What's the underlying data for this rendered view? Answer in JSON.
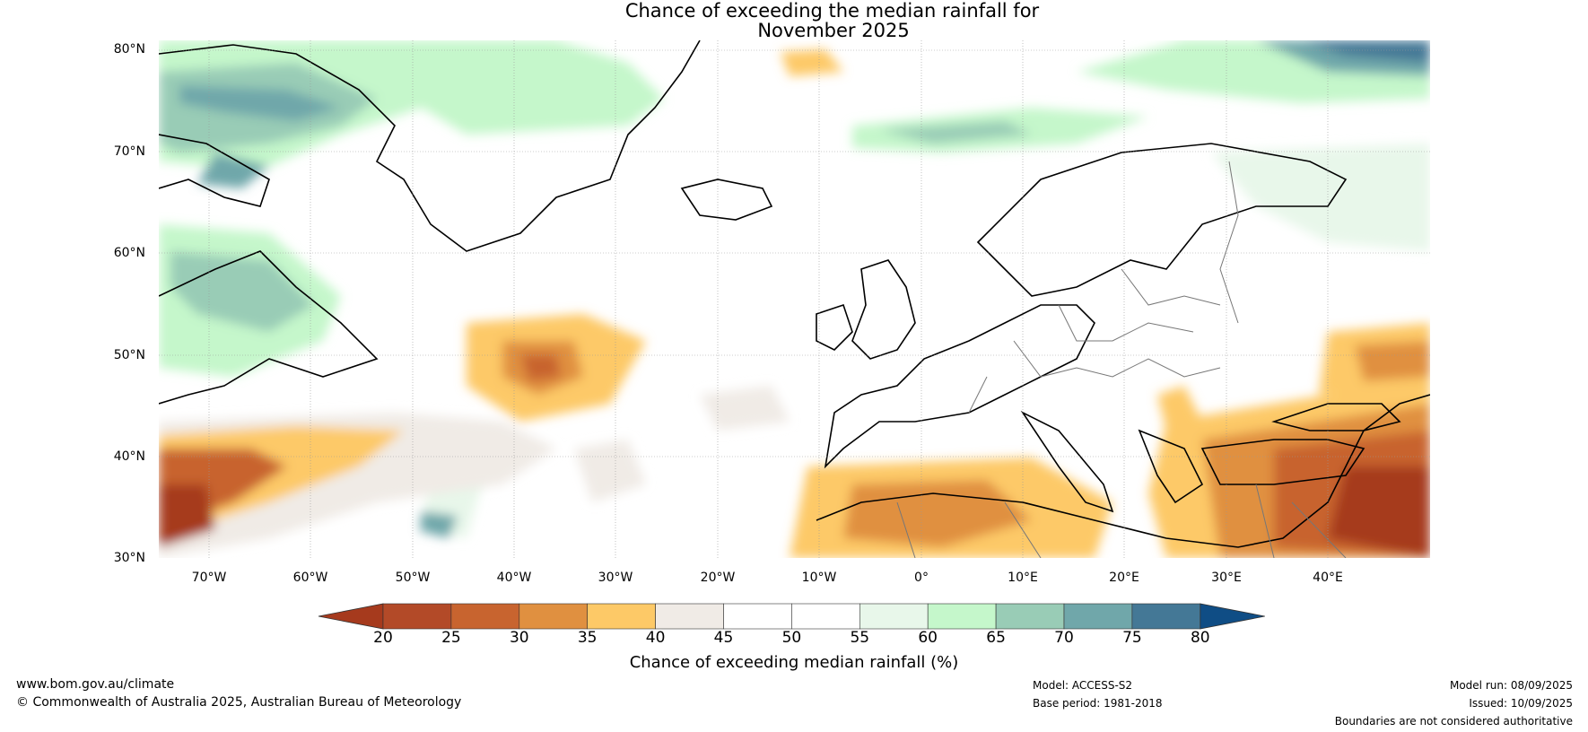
{
  "title": {
    "line1": "Chance of exceeding the median rainfall for",
    "line2": "November 2025"
  },
  "axes": {
    "lat_labels": [
      "80°N",
      "70°N",
      "60°N",
      "50°N",
      "40°N",
      "30°N"
    ],
    "lon_labels": [
      "70°W",
      "60°W",
      "50°W",
      "40°W",
      "30°W",
      "20°W",
      "10°W",
      "0°",
      "10°E",
      "20°E",
      "30°E",
      "40°E"
    ],
    "lat_range": [
      30,
      81
    ],
    "lon_range": [
      -75,
      50
    ]
  },
  "colorbar": {
    "label": "Chance of exceeding median rainfall (%)",
    "ticks": [
      "20",
      "25",
      "30",
      "35",
      "40",
      "45",
      "50",
      "55",
      "60",
      "65",
      "70",
      "75",
      "80"
    ],
    "colors": [
      "#a63a1d",
      "#b34a28",
      "#c8642f",
      "#e09040",
      "#fdc967",
      "#f0ebe6",
      "#ffffff",
      "#ffffff",
      "#e8f7ea",
      "#c5f7cb",
      "#99ccb6",
      "#70a7aa",
      "#447896",
      "#0f4d85"
    ]
  },
  "footer": {
    "website": "www.bom.gov.au/climate",
    "copyright": "© Commonwealth of Australia 2025, Australian Bureau of Meteorology",
    "model": "Model: ACCESS-S2",
    "base_period": "Base period: 1981-2018",
    "model_run": "Model run: 08/09/2025",
    "issued": "Issued: 10/09/2025",
    "disclaimer": "Boundaries are not considered authoritative"
  }
}
